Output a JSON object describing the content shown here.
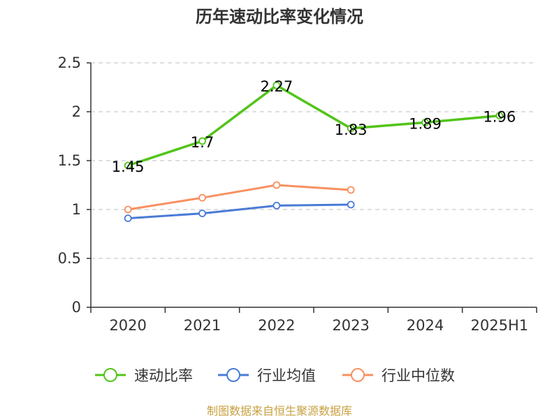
{
  "chart_data": {
    "type": "line",
    "title": "历年速动比率变化情况",
    "categories": [
      "2020",
      "2021",
      "2022",
      "2023",
      "2024",
      "2025H1"
    ],
    "ylim": [
      0,
      2.5
    ],
    "yticks": [
      "0",
      "0.5",
      "1",
      "1.5",
      "2",
      "2.5"
    ],
    "grid": true,
    "legend_position": "bottom",
    "series": [
      {
        "name": "速动比率",
        "color": "#52c41a",
        "values": [
          1.45,
          1.7,
          2.27,
          1.83,
          1.89,
          1.96
        ],
        "labels": [
          "1.45",
          "1.7",
          "2.27",
          "1.83",
          "1.89",
          "1.96"
        ]
      },
      {
        "name": "行业均值",
        "color": "#4a7bd6",
        "values": [
          0.91,
          0.96,
          1.04,
          1.05,
          null,
          null
        ]
      },
      {
        "name": "行业中位数",
        "color": "#f89060",
        "values": [
          1.0,
          1.12,
          1.25,
          1.2,
          null,
          null
        ]
      }
    ],
    "source": "制图数据来自恒生聚源数据库",
    "source_color": "#c8a040"
  }
}
